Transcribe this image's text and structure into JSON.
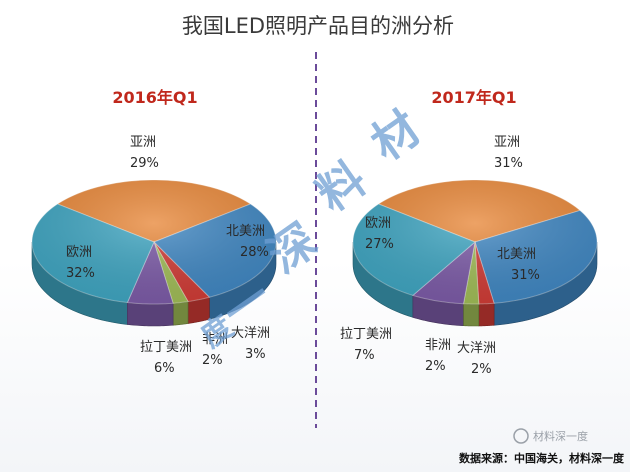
{
  "title": "我国LED照明产品目的洲分析",
  "source": "数据来源：中国海关，材料深一度",
  "account": "材料深一度",
  "watermark": [
    "材",
    "料",
    "深",
    "一",
    "度"
  ],
  "colors": {
    "亚洲": "#e8883a",
    "北美洲": "#3f86c1",
    "欧洲": "#3ea4c0",
    "拉丁美洲": "#7b5aa6",
    "非洲": "#9fbb56",
    "大洋洲": "#cf3b35",
    "divider": "#6b4b9a",
    "year_title": "#c0281c"
  },
  "chart_data": [
    {
      "type": "pie",
      "title": "2016年Q1",
      "categories": [
        "亚洲",
        "北美洲",
        "大洋洲",
        "非洲",
        "拉丁美洲",
        "欧洲"
      ],
      "values": [
        29,
        28,
        3,
        2,
        6,
        32
      ],
      "value_labels": [
        "29%",
        "28%",
        "3%",
        "2%",
        "6%",
        "32%"
      ]
    },
    {
      "type": "pie",
      "title": "2017年Q1",
      "categories": [
        "亚洲",
        "北美洲",
        "大洋洲",
        "非洲",
        "拉丁美洲",
        "欧洲"
      ],
      "values": [
        31,
        31,
        2,
        2,
        7,
        27
      ],
      "value_labels": [
        "31%",
        "31%",
        "2%",
        "2%",
        "7%",
        "27%"
      ]
    }
  ]
}
